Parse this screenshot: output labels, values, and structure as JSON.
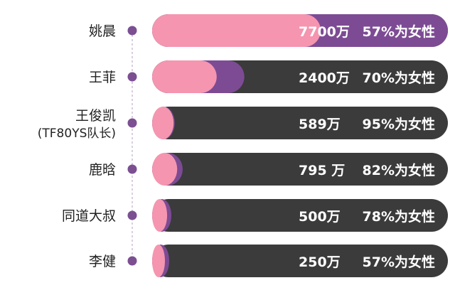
{
  "chart_data": {
    "type": "bar",
    "orientation": "horizontal",
    "xlim": [
      0,
      7700
    ],
    "colors": {
      "track": "#3b3b3b",
      "female": "#f595b0",
      "male": "#7d4b94",
      "dot": "#7b4f92",
      "connector": "#d9cfe0",
      "label": "#222222",
      "value_text": "#ffffff"
    },
    "rows": [
      {
        "name": "姚晨",
        "value_label": "7700万",
        "percent_label": "57%为女性",
        "followers": 7700,
        "female_share": 0.57
      },
      {
        "name": "王菲",
        "value_label": "2400万",
        "percent_label": "70%为女性",
        "followers": 2400,
        "female_share": 0.7
      },
      {
        "name": "王俊凯",
        "name2": "(TF80YS队长)",
        "value_label": "589万",
        "percent_label": "95%为女性",
        "followers": 589,
        "female_share": 0.95
      },
      {
        "name": "鹿晗",
        "value_label": "795 万",
        "percent_label": "82%为女性",
        "followers": 795,
        "female_share": 0.82
      },
      {
        "name": "同道大叔",
        "value_label": "500万",
        "percent_label": "78%为女性",
        "followers": 500,
        "female_share": 0.78
      },
      {
        "name": "李健",
        "value_label": "250万",
        "percent_label": "57%为女性",
        "followers": 250,
        "female_share": 0.57
      }
    ]
  }
}
